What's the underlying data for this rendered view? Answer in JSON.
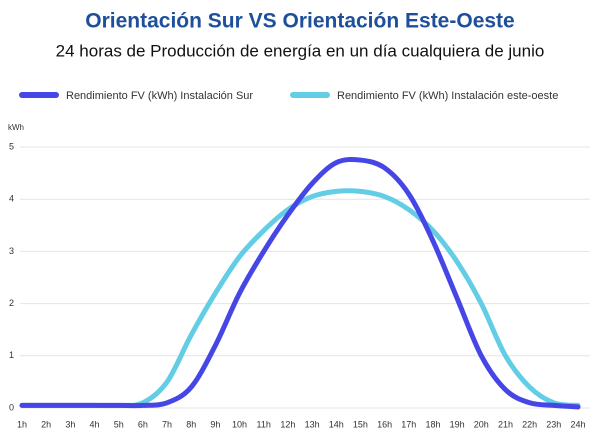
{
  "chart_data": {
    "type": "line",
    "title": "Orientación Sur VS Orientación Este-Oeste",
    "subtitle": "24 horas de Producción de energía en un día cualquiera de junio",
    "y_label": "kWh",
    "categories": [
      "1h",
      "2h",
      "3h",
      "4h",
      "5h",
      "6h",
      "7h",
      "8h",
      "9h",
      "10h",
      "11h",
      "12h",
      "13h",
      "14h",
      "15h",
      "16h",
      "17h",
      "18h",
      "19h",
      "20h",
      "21h",
      "22h",
      "23h",
      "24h"
    ],
    "series": [
      {
        "name": "Rendimiento FV (kWh) Instalación Sur",
        "color": "#4646e6",
        "values": [
          0.05,
          0.05,
          0.05,
          0.05,
          0.05,
          0.05,
          0.1,
          0.4,
          1.2,
          2.2,
          3.0,
          3.7,
          4.3,
          4.7,
          4.75,
          4.6,
          4.1,
          3.2,
          2.1,
          1.0,
          0.35,
          0.1,
          0.05,
          0.02
        ]
      },
      {
        "name": "Rendimiento FV (kWh) Instalación este-oeste",
        "color": "#62cde5",
        "values": [
          0.05,
          0.05,
          0.05,
          0.05,
          0.05,
          0.1,
          0.5,
          1.4,
          2.2,
          2.9,
          3.4,
          3.8,
          4.05,
          4.15,
          4.15,
          4.05,
          3.8,
          3.4,
          2.8,
          2.0,
          1.0,
          0.4,
          0.1,
          0.05
        ]
      }
    ],
    "ylim": [
      0,
      5
    ],
    "yticks": [
      0,
      1,
      2,
      3,
      4,
      5
    ],
    "grid": true
  }
}
